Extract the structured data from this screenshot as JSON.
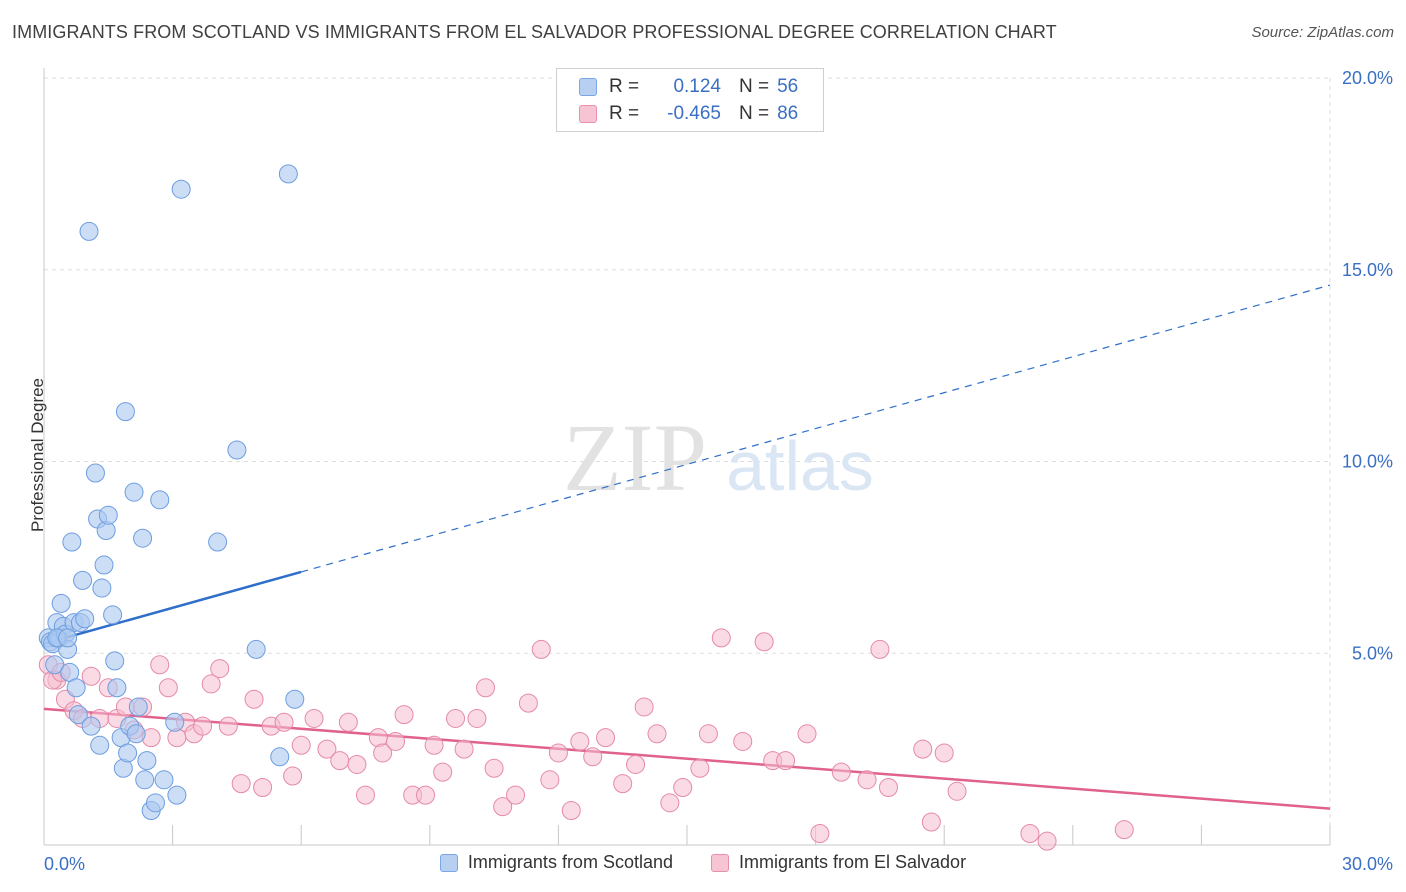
{
  "title": "IMMIGRANTS FROM SCOTLAND VS IMMIGRANTS FROM EL SALVADOR PROFESSIONAL DEGREE CORRELATION CHART",
  "source": "Source: ZipAtlas.com",
  "watermark": {
    "zip": "ZIP",
    "atlas": "atlas"
  },
  "legend": {
    "r_label": "R =",
    "n_label": "N =",
    "rows": [
      {
        "r": "0.124",
        "n": "56",
        "fill": "#b7d0f2",
        "stroke": "#7aa6e3"
      },
      {
        "r": "-0.465",
        "n": "86",
        "fill": "#f7c4d3",
        "stroke": "#e98fab"
      }
    ]
  },
  "colors": {
    "scotland_fill": "#aac8f0",
    "scotland_stroke": "#6d9de0",
    "scotland_line": "#2f6fca",
    "elsalvador_fill": "#f6bdd0",
    "elsalvador_stroke": "#e58aa8",
    "elsalvador_line": "#e0628c",
    "axis_text": "#3a6fc4",
    "grid": "#dddddd"
  },
  "chart_data": {
    "type": "scatter",
    "title": "IMMIGRANTS FROM SCOTLAND VS IMMIGRANTS FROM EL SALVADOR PROFESSIONAL DEGREE CORRELATION CHART",
    "xlabel": "",
    "ylabel": "Professional Degree",
    "xlim": [
      0,
      30
    ],
    "ylim": [
      0,
      20
    ],
    "x_tick_labels": [
      "0.0%",
      "30.0%"
    ],
    "y_ticks": [
      5,
      10,
      15,
      20
    ],
    "y_tick_labels": [
      "5.0%",
      "10.0%",
      "15.0%",
      "20.0%"
    ],
    "grid": true,
    "legend_position": "top-center",
    "series": [
      {
        "name": "Immigrants from Scotland",
        "r": 0.124,
        "n": 56,
        "trend": {
          "x0": 0,
          "y0": 5.25,
          "x1": 30,
          "y1": 14.6,
          "solid_until_x": 6
        },
        "points": [
          [
            0.1,
            5.4
          ],
          [
            0.15,
            5.3
          ],
          [
            0.2,
            5.25
          ],
          [
            0.25,
            4.7
          ],
          [
            0.3,
            5.8
          ],
          [
            0.35,
            5.4
          ],
          [
            0.4,
            6.3
          ],
          [
            0.45,
            5.7
          ],
          [
            0.5,
            5.5
          ],
          [
            0.55,
            5.1
          ],
          [
            0.6,
            4.5
          ],
          [
            0.65,
            7.9
          ],
          [
            0.7,
            5.8
          ],
          [
            0.75,
            4.1
          ],
          [
            0.8,
            3.4
          ],
          [
            0.85,
            5.8
          ],
          [
            0.9,
            6.9
          ],
          [
            0.95,
            5.9
          ],
          [
            1.05,
            16.0
          ],
          [
            1.1,
            3.1
          ],
          [
            1.2,
            9.7
          ],
          [
            1.25,
            8.5
          ],
          [
            1.3,
            2.6
          ],
          [
            1.35,
            6.7
          ],
          [
            1.4,
            7.3
          ],
          [
            1.45,
            8.2
          ],
          [
            1.5,
            8.6
          ],
          [
            1.6,
            6.0
          ],
          [
            1.65,
            4.8
          ],
          [
            1.7,
            4.1
          ],
          [
            1.8,
            2.8
          ],
          [
            1.85,
            2.0
          ],
          [
            1.9,
            11.3
          ],
          [
            1.95,
            2.4
          ],
          [
            2.0,
            3.1
          ],
          [
            2.1,
            9.2
          ],
          [
            2.15,
            2.9
          ],
          [
            2.2,
            3.6
          ],
          [
            2.3,
            8.0
          ],
          [
            2.35,
            1.7
          ],
          [
            2.4,
            2.2
          ],
          [
            2.5,
            0.9
          ],
          [
            2.6,
            1.1
          ],
          [
            2.7,
            9.0
          ],
          [
            2.8,
            1.7
          ],
          [
            3.05,
            3.2
          ],
          [
            3.1,
            1.3
          ],
          [
            3.2,
            17.1
          ],
          [
            4.05,
            7.9
          ],
          [
            4.5,
            10.3
          ],
          [
            4.95,
            5.1
          ],
          [
            5.5,
            2.3
          ],
          [
            5.7,
            17.5
          ],
          [
            5.85,
            3.8
          ],
          [
            0.3,
            5.4
          ],
          [
            0.55,
            5.4
          ]
        ]
      },
      {
        "name": "Immigrants from El Salvador",
        "r": -0.465,
        "n": 86,
        "trend": {
          "x0": 0,
          "y0": 3.55,
          "x1": 30,
          "y1": 0.95
        },
        "points": [
          [
            0.1,
            4.7
          ],
          [
            0.3,
            4.3
          ],
          [
            0.5,
            3.8
          ],
          [
            0.7,
            3.5
          ],
          [
            0.9,
            3.3
          ],
          [
            1.1,
            4.4
          ],
          [
            1.3,
            3.3
          ],
          [
            1.5,
            4.1
          ],
          [
            1.7,
            3.3
          ],
          [
            1.9,
            3.6
          ],
          [
            2.1,
            3.0
          ],
          [
            2.3,
            3.6
          ],
          [
            2.5,
            2.8
          ],
          [
            2.7,
            4.7
          ],
          [
            2.9,
            4.1
          ],
          [
            3.1,
            2.8
          ],
          [
            3.3,
            3.2
          ],
          [
            3.5,
            2.9
          ],
          [
            3.7,
            3.1
          ],
          [
            3.9,
            4.2
          ],
          [
            4.1,
            4.6
          ],
          [
            4.3,
            3.1
          ],
          [
            4.6,
            1.6
          ],
          [
            4.9,
            3.8
          ],
          [
            5.1,
            1.5
          ],
          [
            5.3,
            3.1
          ],
          [
            5.6,
            3.2
          ],
          [
            5.8,
            1.8
          ],
          [
            6.0,
            2.6
          ],
          [
            6.3,
            3.3
          ],
          [
            6.6,
            2.5
          ],
          [
            6.9,
            2.2
          ],
          [
            7.1,
            3.2
          ],
          [
            7.3,
            2.1
          ],
          [
            7.5,
            1.3
          ],
          [
            7.8,
            2.8
          ],
          [
            7.9,
            2.4
          ],
          [
            8.2,
            2.7
          ],
          [
            8.4,
            3.4
          ],
          [
            8.6,
            1.3
          ],
          [
            8.9,
            1.3
          ],
          [
            9.1,
            2.6
          ],
          [
            9.3,
            1.9
          ],
          [
            9.6,
            3.3
          ],
          [
            9.8,
            2.5
          ],
          [
            10.1,
            3.3
          ],
          [
            10.3,
            4.1
          ],
          [
            10.5,
            2.0
          ],
          [
            10.7,
            1.0
          ],
          [
            11.0,
            1.3
          ],
          [
            11.3,
            3.7
          ],
          [
            11.6,
            5.1
          ],
          [
            11.8,
            1.7
          ],
          [
            12.0,
            2.4
          ],
          [
            12.3,
            0.9
          ],
          [
            12.5,
            2.7
          ],
          [
            12.8,
            2.3
          ],
          [
            13.1,
            2.8
          ],
          [
            13.5,
            1.6
          ],
          [
            13.8,
            2.1
          ],
          [
            14.0,
            3.6
          ],
          [
            14.3,
            2.9
          ],
          [
            14.6,
            1.1
          ],
          [
            14.9,
            1.5
          ],
          [
            15.3,
            2.0
          ],
          [
            15.5,
            2.9
          ],
          [
            15.8,
            5.4
          ],
          [
            16.3,
            2.7
          ],
          [
            16.8,
            5.3
          ],
          [
            17.0,
            2.2
          ],
          [
            17.3,
            2.2
          ],
          [
            17.8,
            2.9
          ],
          [
            18.1,
            0.3
          ],
          [
            18.6,
            1.9
          ],
          [
            19.2,
            1.7
          ],
          [
            19.5,
            5.1
          ],
          [
            19.7,
            1.5
          ],
          [
            20.5,
            2.5
          ],
          [
            20.7,
            0.6
          ],
          [
            21.0,
            2.4
          ],
          [
            21.3,
            1.4
          ],
          [
            23.0,
            0.3
          ],
          [
            23.4,
            0.1
          ],
          [
            25.2,
            0.4
          ],
          [
            0.2,
            4.3
          ],
          [
            0.4,
            4.5
          ]
        ]
      }
    ]
  },
  "bottom_legend": [
    {
      "label": "Immigrants from Scotland"
    },
    {
      "label": "Immigrants from El Salvador"
    }
  ]
}
